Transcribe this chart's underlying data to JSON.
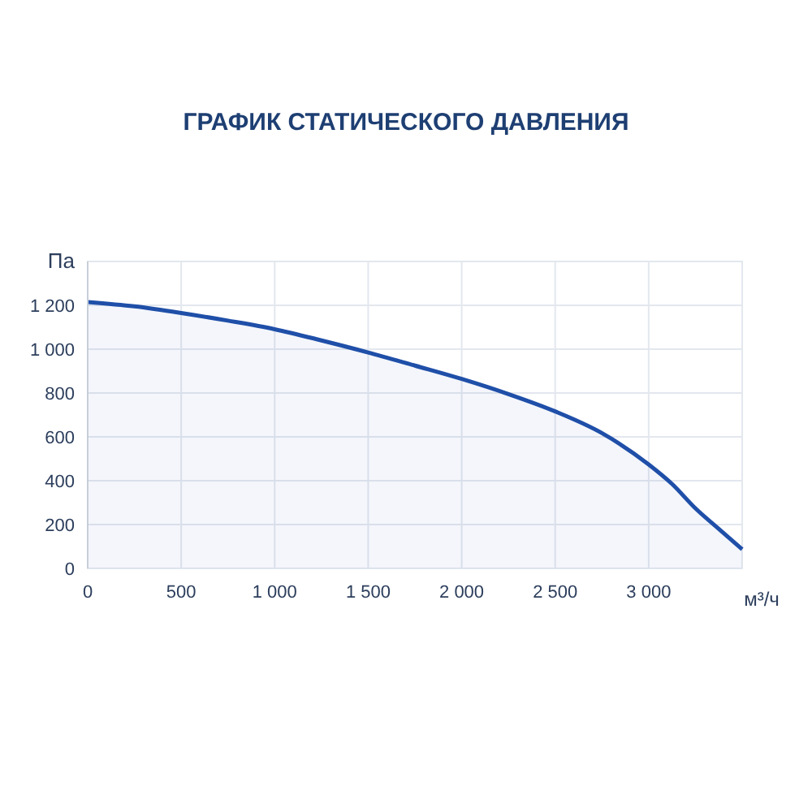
{
  "chart_data": {
    "type": "area",
    "title": "ГРАФИК СТАТИЧЕСКОГО ДАВЛЕНИЯ",
    "ylabel": "Па",
    "xlabel": "м³/ч",
    "x": [
      0,
      250,
      500,
      750,
      1000,
      1250,
      1500,
      1750,
      2000,
      2250,
      2500,
      2750,
      3000,
      3125,
      3250,
      3375,
      3500
    ],
    "series": [
      {
        "color": "#1f4fa8",
        "values": [
          1215,
          1195,
          1165,
          1130,
          1091,
          1040,
          985,
          925,
          864,
          795,
          716,
          617,
          474,
          385,
          274,
          180,
          87
        ]
      }
    ],
    "xlim": [
      0,
      3500
    ],
    "xticks": [
      {
        "value": 0,
        "label": "0"
      },
      {
        "value": 500,
        "label": "500"
      },
      {
        "value": 1000,
        "label": "1 000"
      },
      {
        "value": 1500,
        "label": "1 500"
      },
      {
        "value": 2000,
        "label": "2 000"
      },
      {
        "value": 2500,
        "label": "2 500"
      },
      {
        "value": 3000,
        "label": "3 000"
      }
    ],
    "ylim": [
      0,
      1400
    ],
    "yticks": [
      {
        "value": 0,
        "label": "0"
      },
      {
        "value": 200,
        "label": "200"
      },
      {
        "value": 400,
        "label": "400"
      },
      {
        "value": 600,
        "label": "600"
      },
      {
        "value": 800,
        "label": "800"
      },
      {
        "value": 1000,
        "label": "1 000"
      },
      {
        "value": 1200,
        "label": "1 200"
      }
    ],
    "grid": true
  }
}
